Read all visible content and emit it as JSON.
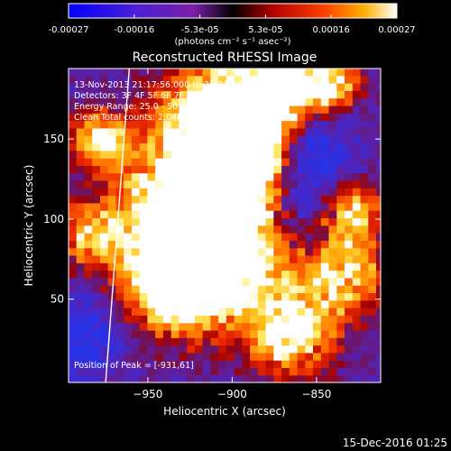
{
  "colorbar": {
    "tick_labels": [
      "-0.00027",
      "-0.00016",
      "-5.3e-05",
      "5.3e-05",
      "0.00016",
      "0.00027"
    ],
    "units_label": "(photons cm⁻² s⁻¹ asec⁻²)"
  },
  "chart_data": {
    "type": "heatmap",
    "title": "Reconstructed RHESSI Image",
    "xlabel": "Heliocentric X (arcsec)",
    "ylabel": "Heliocentric Y (arcsec)",
    "xlim": [
      -997,
      -812
    ],
    "ylim": [
      -2,
      194
    ],
    "x_ticks": [
      -950,
      -900,
      -850
    ],
    "y_ticks": [
      50,
      100,
      150
    ],
    "x_tick_labels": [
      "−950",
      "−900",
      "−850"
    ],
    "y_tick_labels": [
      "50",
      "100",
      "150"
    ],
    "color_range": [
      -0.00027,
      0.00027
    ],
    "colormap": "blue-purple-red-orange-yellow-white",
    "peak": {
      "x": -931,
      "y": 61
    },
    "limb_line": [
      [
        -975,
        -2
      ],
      [
        -961,
        194
      ]
    ],
    "info_lines": [
      "13-Nov-2013 21:17:56.000 to 21:21:56.000",
      "Detectors: 3F 4F 5F 6F 7F 8F, Att 0",
      "Energy Range: 25.0 - 50.0 keV",
      "Clean     Total counts: 2.04E+04"
    ],
    "peak_label": "Position of Peak = [-931,61]"
  },
  "footer": {
    "date": "15-Dec-2016 01:25"
  }
}
